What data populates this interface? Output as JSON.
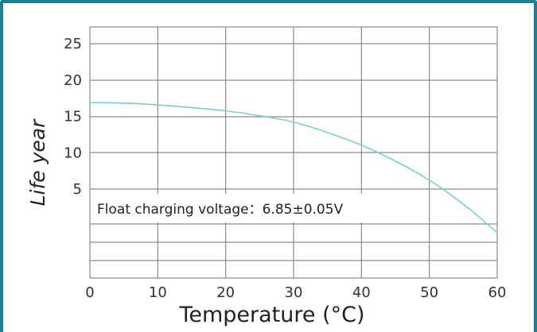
{
  "chart_data": {
    "type": "line",
    "xlabel": "Temperature (°C)",
    "ylabel": "Life year",
    "xlim": [
      0,
      60
    ],
    "ylim": [
      0,
      27
    ],
    "x_ticks": [
      "0",
      "10",
      "20",
      "30",
      "40",
      "50",
      "60"
    ],
    "y_ticks": [
      "5",
      "10",
      "15",
      "20",
      "25"
    ],
    "grid": true,
    "annotation": "Float charging voltage：6.85±0.05V",
    "series": [
      {
        "x": [
          0,
          5,
          10,
          15,
          20,
          25,
          30,
          35,
          40,
          45,
          50,
          55,
          60
        ],
        "y": [
          16.9,
          16.85,
          16.6,
          16.2,
          15.8,
          15.1,
          14.3,
          12.8,
          11.1,
          8.9,
          6.3,
          3.0,
          -1.0
        ],
        "color": "#7ecfc4"
      }
    ]
  }
}
